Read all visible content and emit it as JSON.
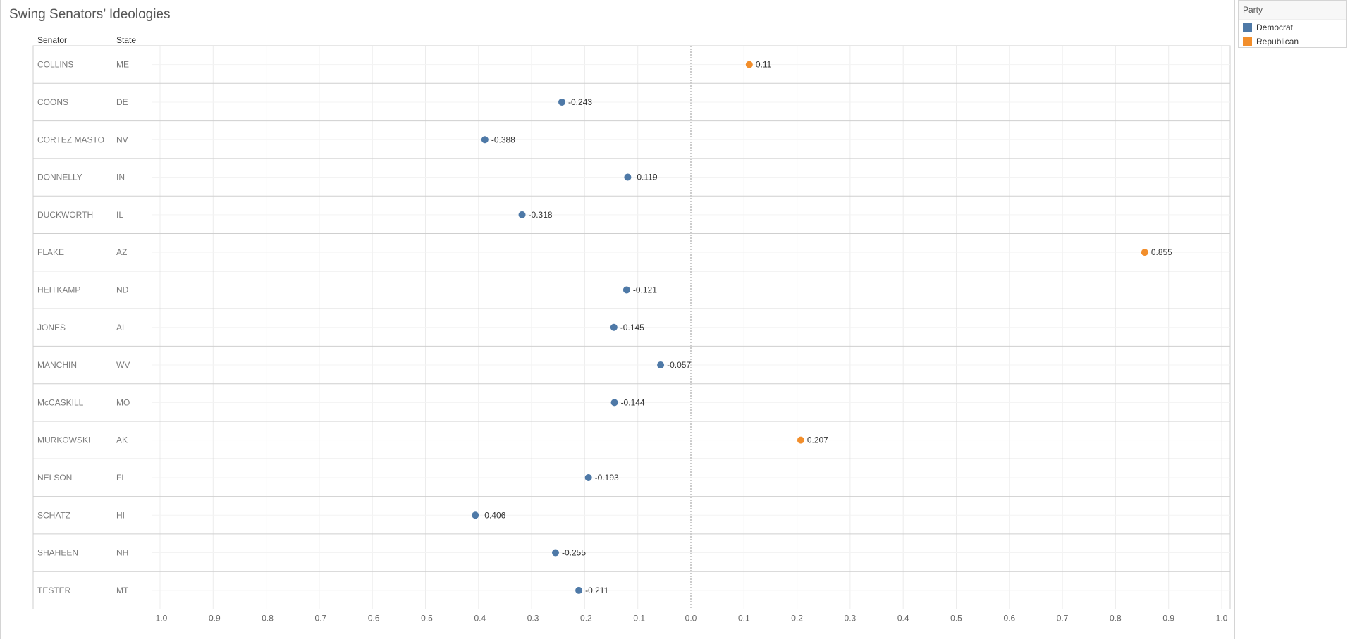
{
  "title": "Swing Senators’ Ideologies",
  "columns": {
    "senator": "Senator",
    "state": "State"
  },
  "legend": {
    "title": "Party",
    "items": [
      {
        "label": "Democrat",
        "color": "#4e79a7"
      },
      {
        "label": "Republican",
        "color": "#f28e2b"
      }
    ]
  },
  "chart_data": {
    "type": "scatter",
    "title": "Swing Senators’ Ideologies",
    "xlim": [
      -1.0,
      1.0
    ],
    "x_ticks": [
      "-1.0",
      "-0.9",
      "-0.8",
      "-0.7",
      "-0.6",
      "-0.5",
      "-0.4",
      "-0.3",
      "-0.2",
      "-0.1",
      "0.0",
      "0.1",
      "0.2",
      "0.3",
      "0.4",
      "0.5",
      "0.6",
      "0.7",
      "0.8",
      "0.9",
      "1.0"
    ],
    "grid": true,
    "legend_position": "top-right",
    "rows": [
      {
        "senator": "COLLINS",
        "state": "ME",
        "party": "Republican",
        "value": 0.11,
        "label": "0.11"
      },
      {
        "senator": "COONS",
        "state": "DE",
        "party": "Democrat",
        "value": -0.243,
        "label": "-0.243"
      },
      {
        "senator": "CORTEZ MASTO",
        "state": "NV",
        "party": "Democrat",
        "value": -0.388,
        "label": "-0.388"
      },
      {
        "senator": "DONNELLY",
        "state": "IN",
        "party": "Democrat",
        "value": -0.119,
        "label": "-0.119"
      },
      {
        "senator": "DUCKWORTH",
        "state": "IL",
        "party": "Democrat",
        "value": -0.318,
        "label": "-0.318"
      },
      {
        "senator": "FLAKE",
        "state": "AZ",
        "party": "Republican",
        "value": 0.855,
        "label": "0.855"
      },
      {
        "senator": "HEITKAMP",
        "state": "ND",
        "party": "Democrat",
        "value": -0.121,
        "label": "-0.121"
      },
      {
        "senator": "JONES",
        "state": "AL",
        "party": "Democrat",
        "value": -0.145,
        "label": "-0.145"
      },
      {
        "senator": "MANCHIN",
        "state": "WV",
        "party": "Democrat",
        "value": -0.057,
        "label": "-0.057"
      },
      {
        "senator": "McCASKILL",
        "state": "MO",
        "party": "Democrat",
        "value": -0.144,
        "label": "-0.144"
      },
      {
        "senator": "MURKOWSKI",
        "state": "AK",
        "party": "Republican",
        "value": 0.207,
        "label": "0.207"
      },
      {
        "senator": "NELSON",
        "state": "FL",
        "party": "Democrat",
        "value": -0.193,
        "label": "-0.193"
      },
      {
        "senator": "SCHATZ",
        "state": "HI",
        "party": "Democrat",
        "value": -0.406,
        "label": "-0.406"
      },
      {
        "senator": "SHAHEEN",
        "state": "NH",
        "party": "Democrat",
        "value": -0.255,
        "label": "-0.255"
      },
      {
        "senator": "TESTER",
        "state": "MT",
        "party": "Democrat",
        "value": -0.211,
        "label": "-0.211"
      }
    ]
  }
}
